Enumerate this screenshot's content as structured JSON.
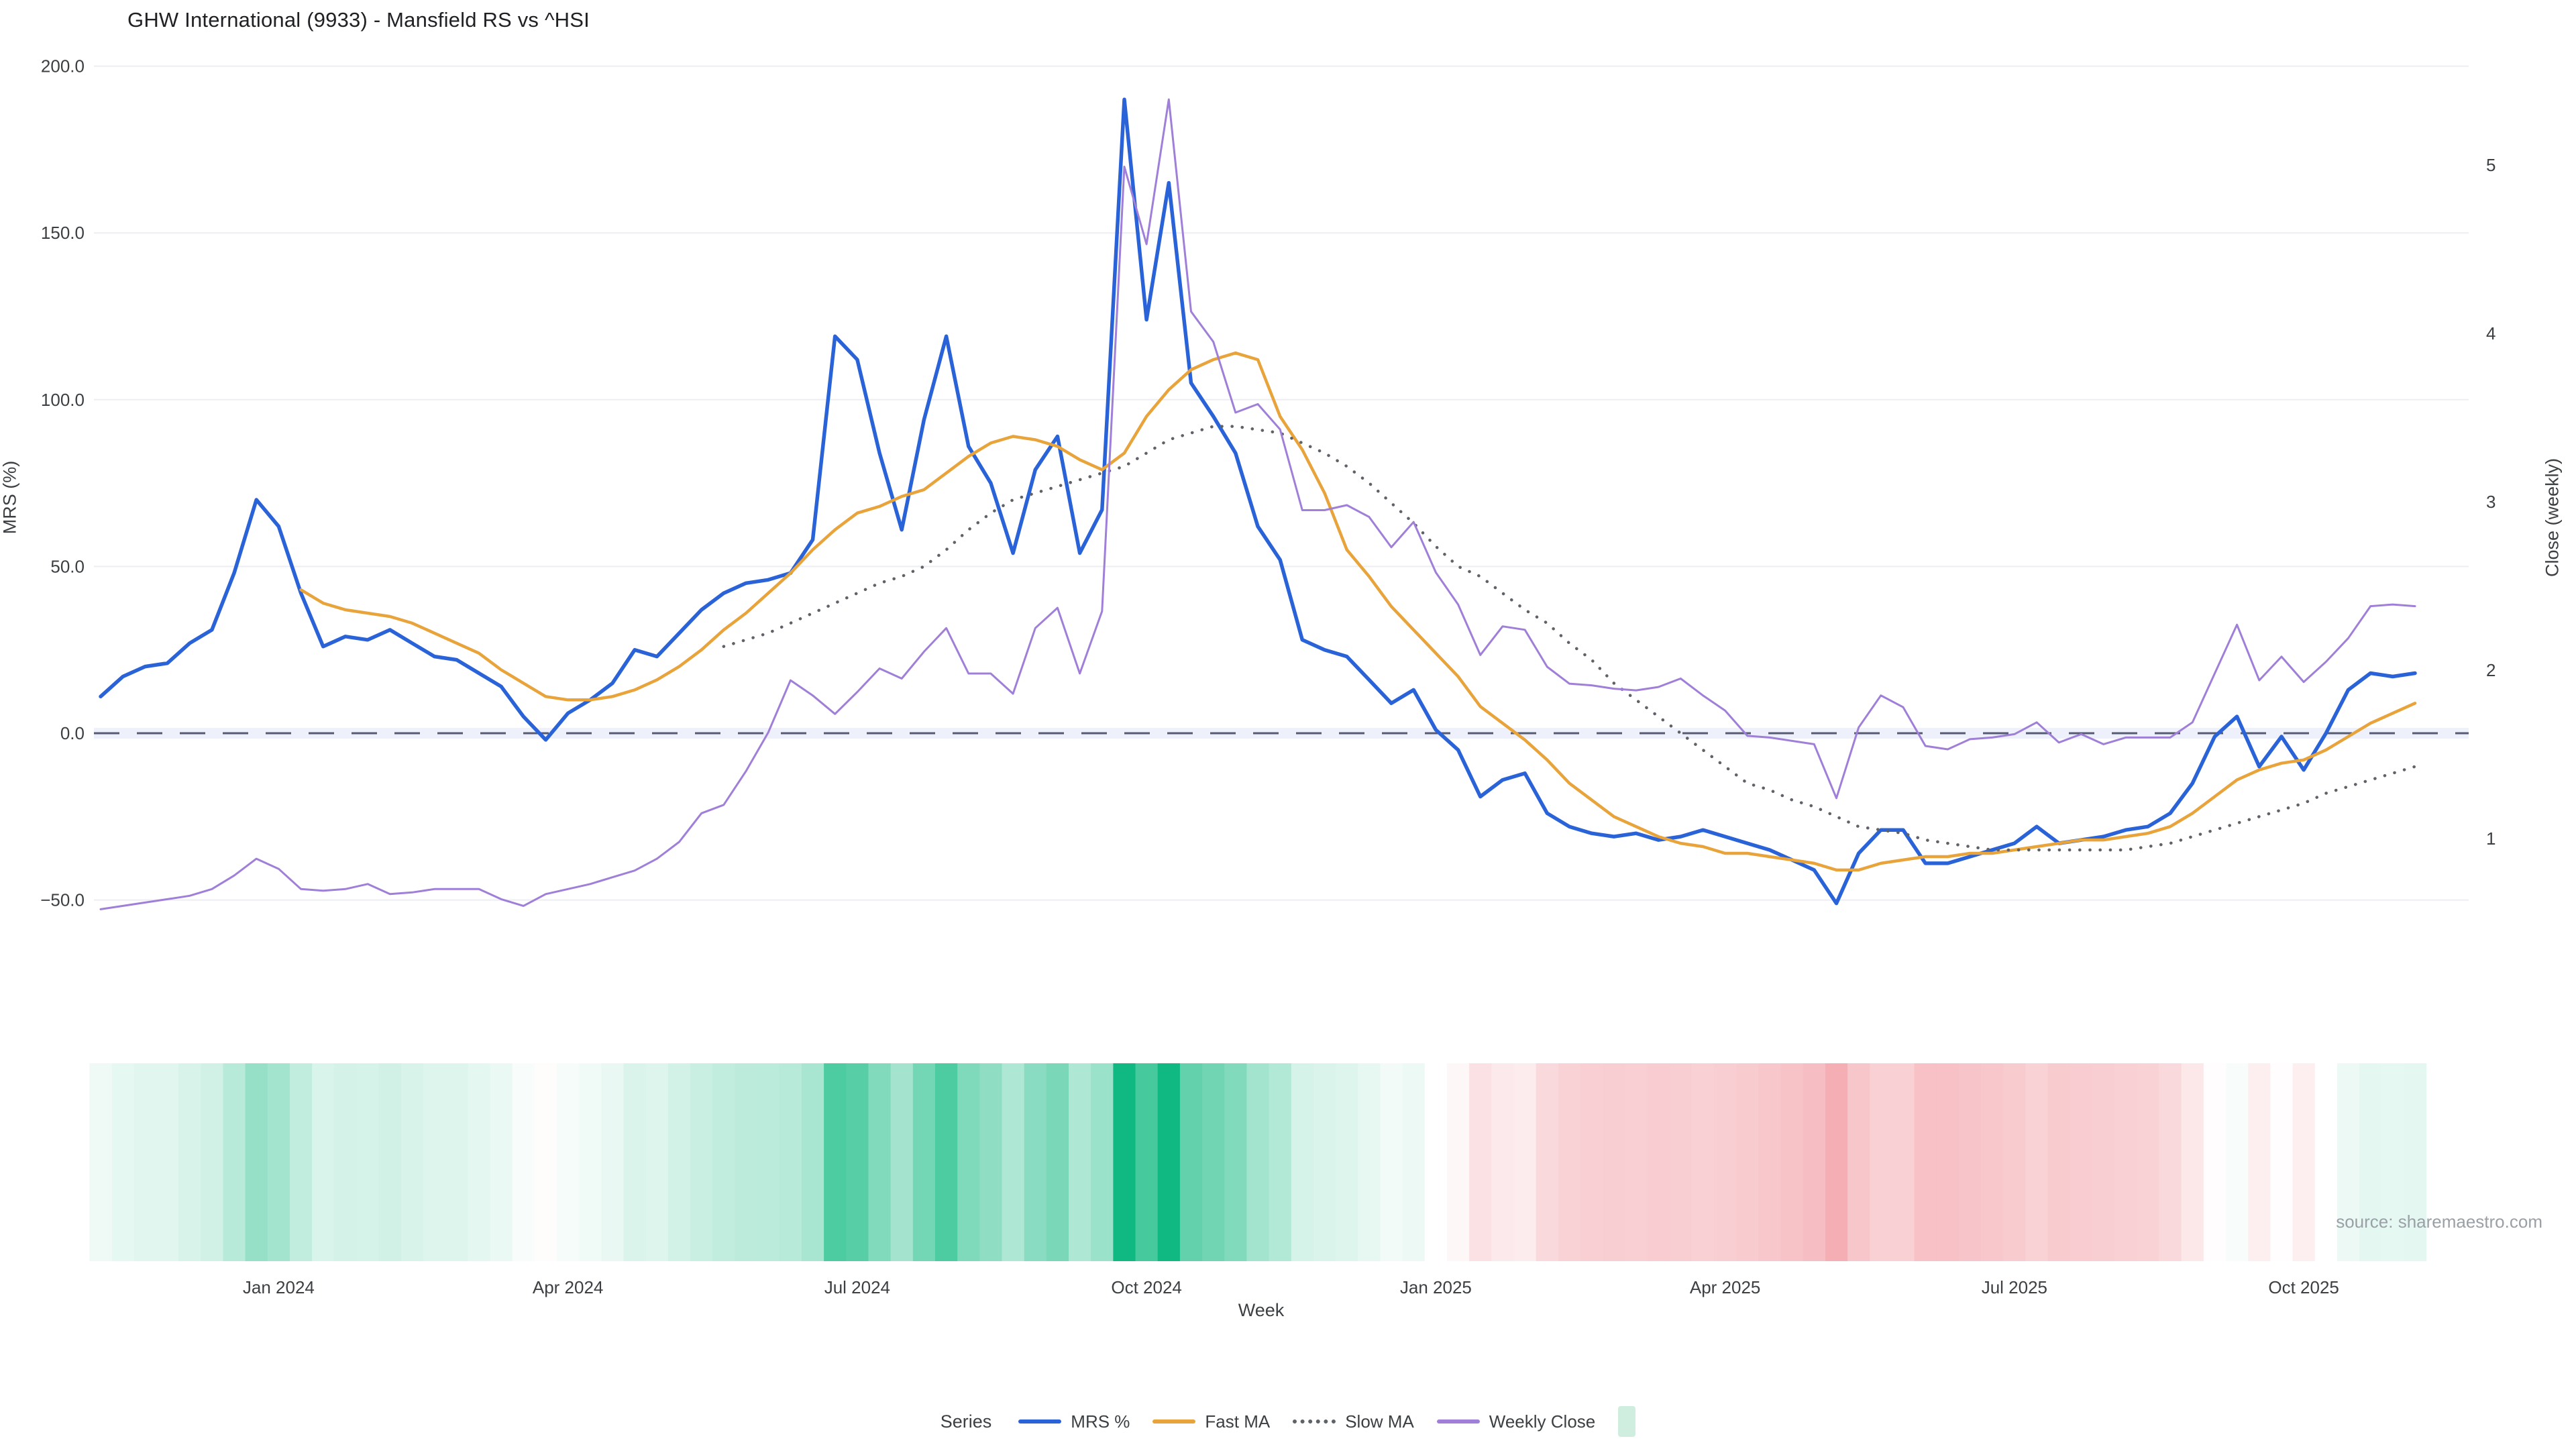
{
  "title": "GHW International (9933) - Mansfield RS vs ^HSI",
  "source": "source: sharemaestro.com",
  "axes": {
    "left_label": "MRS (%)",
    "right_label": "Close (weekly)",
    "x_label": "Week"
  },
  "legend": {
    "title": "Series",
    "heat_swatch_color": "#cfeee0"
  },
  "chart_data": {
    "type": "line",
    "title": "GHW International (9933) - Mansfield RS vs ^HSI",
    "xlabel": "Week",
    "ylabel_left": "MRS (%)",
    "ylabel_right": "Close (weekly)",
    "grid": true,
    "legend_position": "bottom-center",
    "weeks": 105,
    "x_ticks": [
      {
        "week": 8,
        "label": "Jan 2024"
      },
      {
        "week": 21,
        "label": "Apr 2024"
      },
      {
        "week": 34,
        "label": "Jul 2024"
      },
      {
        "week": 47,
        "label": "Oct 2024"
      },
      {
        "week": 60,
        "label": "Jan 2025"
      },
      {
        "week": 73,
        "label": "Apr 2025"
      },
      {
        "week": 86,
        "label": "Jul 2025"
      },
      {
        "week": 99,
        "label": "Oct 2025"
      }
    ],
    "y_left_ticks": [
      {
        "v": 200,
        "label": "200.0"
      },
      {
        "v": 150,
        "label": "150.0"
      },
      {
        "v": 100,
        "label": "100.0"
      },
      {
        "v": 50,
        "label": "50.0"
      },
      {
        "v": 0,
        "label": "0.0"
      },
      {
        "v": -50,
        "label": "−50.0"
      }
    ],
    "y_right_ticks": [
      {
        "v": 5,
        "label": "5"
      },
      {
        "v": 4,
        "label": "4"
      },
      {
        "v": 3,
        "label": "3"
      },
      {
        "v": 2,
        "label": "2"
      },
      {
        "v": 1,
        "label": "1"
      }
    ],
    "ylim_left": [
      -75,
      205
    ],
    "ylim_right": [
      0.4,
      5.6
    ],
    "zero_line": 0,
    "series": [
      {
        "name": "MRS %",
        "axis": "left",
        "style": "solid",
        "color": "#2a63d8",
        "width": 5.5,
        "values": [
          11,
          17,
          20,
          21,
          27,
          31,
          48,
          70,
          62,
          42,
          26,
          29,
          28,
          31,
          27,
          23,
          22,
          18,
          14,
          5,
          -2,
          6,
          10,
          15,
          25,
          23,
          30,
          37,
          42,
          45,
          46,
          48,
          58,
          119,
          112,
          84,
          61,
          94,
          119,
          86,
          75,
          54,
          79,
          89,
          54,
          67,
          190,
          124,
          165,
          105,
          95,
          84,
          62,
          52,
          28,
          25,
          23,
          16,
          9,
          13,
          1,
          -5,
          -19,
          -14,
          -12,
          -24,
          -28,
          -30,
          -31,
          -30,
          -32,
          -31,
          -29,
          -31,
          -33,
          -35,
          -38,
          -41,
          -51,
          -36,
          -29,
          -29,
          -39,
          -39,
          -37,
          -35,
          -33,
          -28,
          -33,
          -32,
          -31,
          -29,
          -28,
          -24,
          -15,
          -1,
          5,
          -10,
          -1,
          -11,
          0,
          13,
          18,
          17,
          18
        ]
      },
      {
        "name": "Fast MA",
        "axis": "left",
        "style": "solid",
        "color": "#e8a33a",
        "width": 4.5,
        "values": [
          null,
          null,
          null,
          null,
          null,
          null,
          null,
          null,
          null,
          43,
          39,
          37,
          36,
          35,
          33,
          30,
          27,
          24,
          19,
          15,
          11,
          10,
          10,
          11,
          13,
          16,
          20,
          25,
          31,
          36,
          42,
          48,
          55,
          61,
          66,
          68,
          71,
          73,
          78,
          83,
          87,
          89,
          88,
          86,
          82,
          79,
          84,
          95,
          103,
          109,
          112,
          114,
          112,
          95,
          85,
          72,
          55,
          47,
          38,
          31,
          24,
          17,
          8,
          3,
          -2,
          -8,
          -15,
          -20,
          -25,
          -28,
          -31,
          -33,
          -34,
          -36,
          -36,
          -37,
          -38,
          -39,
          -41,
          -41,
          -39,
          -38,
          -37,
          -37,
          -36,
          -36,
          -35,
          -34,
          -33,
          -32,
          -32,
          -31,
          -30,
          -28,
          -24,
          -19,
          -14,
          -11,
          -9,
          -8,
          -5,
          -1,
          3,
          6,
          9
        ]
      },
      {
        "name": "Slow MA",
        "axis": "left",
        "style": "dotted",
        "color": "#5f6368",
        "width": 4.5,
        "values": [
          null,
          null,
          null,
          null,
          null,
          null,
          null,
          null,
          null,
          null,
          null,
          null,
          null,
          null,
          null,
          null,
          null,
          null,
          null,
          null,
          null,
          null,
          null,
          null,
          null,
          null,
          null,
          null,
          26,
          28,
          30,
          33,
          36,
          39,
          42,
          45,
          47,
          50,
          55,
          61,
          66,
          70,
          72,
          74,
          76,
          78,
          80,
          84,
          88,
          90,
          92,
          92,
          91,
          90,
          87,
          84,
          80,
          75,
          69,
          63,
          56,
          50,
          47,
          42,
          37,
          33,
          27,
          22,
          15,
          10,
          5,
          0,
          -5,
          -10,
          -15,
          -17,
          -20,
          -22,
          -25,
          -28,
          -29,
          -30,
          -32,
          -33,
          -34,
          -35,
          -35,
          -35,
          -35,
          -35,
          -35,
          -35,
          -34,
          -33,
          -31,
          -29,
          -27,
          -25,
          -23,
          -21,
          -18,
          -16,
          -14,
          -12,
          -10
        ]
      },
      {
        "name": "Weekly Close",
        "axis": "right",
        "style": "solid",
        "color": "#9f7fd8",
        "width": 3,
        "values": [
          0.58,
          0.6,
          0.62,
          0.64,
          0.66,
          0.7,
          0.78,
          0.88,
          0.82,
          0.7,
          0.69,
          0.7,
          0.73,
          0.67,
          0.68,
          0.7,
          0.7,
          0.7,
          0.64,
          0.6,
          0.67,
          0.7,
          0.73,
          0.77,
          0.81,
          0.88,
          0.98,
          1.15,
          1.2,
          1.4,
          1.63,
          1.94,
          1.85,
          1.74,
          1.87,
          2.01,
          1.95,
          2.11,
          2.25,
          1.98,
          1.98,
          1.86,
          2.25,
          2.37,
          1.98,
          2.35,
          4.99,
          4.53,
          5.39,
          4.13,
          3.95,
          3.53,
          3.58,
          3.43,
          2.95,
          2.95,
          2.98,
          2.91,
          2.73,
          2.88,
          2.58,
          2.39,
          2.09,
          2.26,
          2.24,
          2.02,
          1.92,
          1.91,
          1.89,
          1.88,
          1.9,
          1.95,
          1.85,
          1.76,
          1.61,
          1.6,
          1.58,
          1.56,
          1.24,
          1.66,
          1.85,
          1.78,
          1.55,
          1.53,
          1.59,
          1.6,
          1.62,
          1.69,
          1.57,
          1.62,
          1.56,
          1.6,
          1.6,
          1.6,
          1.69,
          1.98,
          2.27,
          1.94,
          2.08,
          1.93,
          2.05,
          2.19,
          2.38,
          2.39,
          2.38
        ]
      }
    ],
    "heat_strip": {
      "basis": "MRS %",
      "green_rgb": [
        16,
        185,
        129
      ],
      "red_rgb": [
        232,
        80,
        94
      ],
      "green_scale": 160,
      "red_scale": 110
    }
  }
}
